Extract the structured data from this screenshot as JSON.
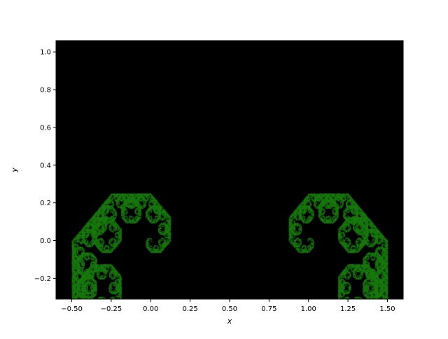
{
  "chart_data": {
    "type": "scatter",
    "title": "",
    "xlabel": "x",
    "ylabel": "y",
    "xlim": [
      -0.6,
      1.6
    ],
    "ylim": [
      -0.31,
      1.06
    ],
    "x_ticks": [
      -0.5,
      -0.25,
      0.0,
      0.25,
      0.5,
      0.75,
      1.0,
      1.25,
      1.5
    ],
    "x_tick_labels": [
      "−0.50",
      "−0.25",
      "0.00",
      "0.25",
      "0.50",
      "0.75",
      "1.00",
      "1.25",
      "1.50"
    ],
    "y_ticks": [
      -0.2,
      0.0,
      0.2,
      0.4,
      0.6,
      0.8,
      1.0
    ],
    "y_tick_labels": [
      "−0.2",
      "0.0",
      "0.2",
      "0.4",
      "0.6",
      "0.8",
      "1.0"
    ],
    "grid": false,
    "legend": "none",
    "colors": {
      "background": "#000000",
      "points": "#1a7a10"
    },
    "series": [
      {
        "x": [
          0.0,
          1.0
        ],
        "y": [
          0.0,
          0.0
        ]
      }
    ],
    "shape": "Lévy C curve fractal (chaos-game points)"
  }
}
